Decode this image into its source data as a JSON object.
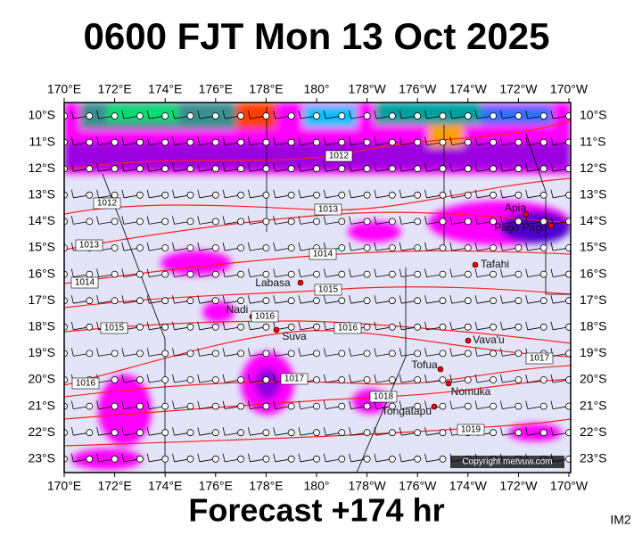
{
  "title": "0600 FJT Mon 13 Oct 2025",
  "footer": "Forecast +174 hr",
  "image_code": "IM2",
  "copyright": "Copyright metvuw.com",
  "lon_labels": [
    "170°E",
    "172°E",
    "174°E",
    "176°E",
    "178°E",
    "180°",
    "178°W",
    "176°W",
    "174°W",
    "172°W",
    "170°W"
  ],
  "lat_labels": [
    "10°S",
    "11°S",
    "12°S",
    "13°S",
    "14°S",
    "15°S",
    "16°S",
    "17°S",
    "18°S",
    "19°S",
    "20°S",
    "21°S",
    "22°S",
    "23°S"
  ],
  "places": [
    "Apia",
    "Pago Pago",
    "Tafahi",
    "Labasa",
    "Nadi",
    "Suva",
    "Vava'u",
    "Tofua",
    "Nomuka",
    "Tongatapu"
  ],
  "isobar_labels": [
    "1012",
    "1012",
    "1013",
    "1013",
    "1014",
    "1014",
    "1015",
    "1015",
    "1016",
    "1016",
    "1016",
    "1017",
    "1017",
    "1018",
    "1019"
  ]
}
